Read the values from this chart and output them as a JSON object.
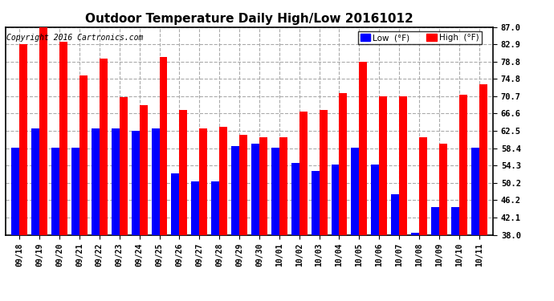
{
  "title": "Outdoor Temperature Daily High/Low 20161012",
  "copyright": "Copyright 2016 Cartronics.com",
  "legend_low_label": "Low  (°F)",
  "legend_high_label": "High  (°F)",
  "low_color": "#0000ff",
  "high_color": "#ff0000",
  "background_color": "#ffffff",
  "ytick_labels": [
    "38.0",
    "42.1",
    "46.2",
    "50.2",
    "54.3",
    "58.4",
    "62.5",
    "66.6",
    "70.7",
    "74.8",
    "78.8",
    "82.9",
    "87.0"
  ],
  "ytick_values": [
    38.0,
    42.1,
    46.2,
    50.2,
    54.3,
    58.4,
    62.5,
    66.6,
    70.7,
    74.8,
    78.8,
    82.9,
    87.0
  ],
  "ymin": 38.0,
  "ymax": 87.0,
  "categories": [
    "09/18",
    "09/19",
    "09/20",
    "09/21",
    "09/22",
    "09/23",
    "09/24",
    "09/25",
    "09/26",
    "09/27",
    "09/28",
    "09/29",
    "09/30",
    "10/01",
    "10/02",
    "10/03",
    "10/04",
    "10/05",
    "10/06",
    "10/07",
    "10/08",
    "10/09",
    "10/10",
    "10/11"
  ],
  "highs": [
    83.0,
    87.0,
    83.5,
    75.5,
    79.5,
    70.5,
    68.5,
    80.0,
    67.5,
    63.0,
    63.5,
    61.5,
    61.0,
    61.0,
    67.0,
    67.5,
    71.5,
    78.8,
    70.7,
    70.7,
    61.0,
    59.5,
    71.0,
    73.5
  ],
  "lows": [
    58.5,
    63.0,
    58.5,
    58.5,
    63.0,
    63.0,
    62.5,
    63.0,
    52.5,
    50.5,
    50.5,
    59.0,
    59.5,
    58.5,
    55.0,
    53.0,
    54.5,
    58.5,
    54.5,
    47.5,
    38.5,
    44.5,
    44.5,
    58.5
  ]
}
